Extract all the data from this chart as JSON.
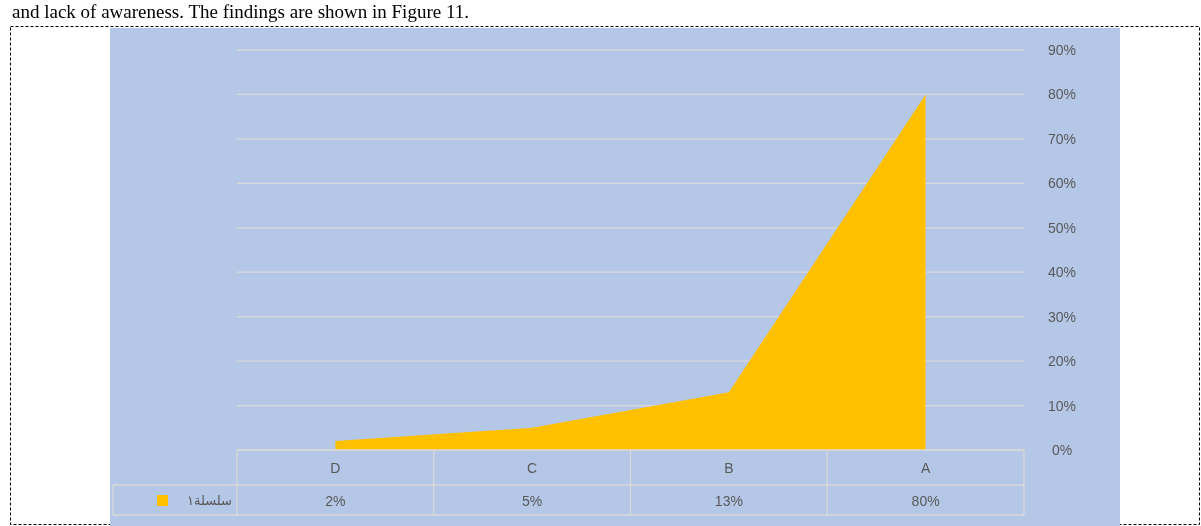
{
  "chart_data": {
    "type": "area",
    "categories": [
      "D",
      "C",
      "B",
      "A"
    ],
    "series": [
      {
        "name": "سلسلة١",
        "color": "#ffc000",
        "values": [
          2,
          5,
          13,
          80
        ]
      }
    ],
    "ylim": [
      0,
      90
    ],
    "yticks": [
      {
        "value": 0,
        "label": "0%"
      },
      {
        "value": 10,
        "label": "10%"
      },
      {
        "value": 20,
        "label": "20%"
      },
      {
        "value": 30,
        "label": "30%"
      },
      {
        "value": 40,
        "label": "40%"
      },
      {
        "value": 50,
        "label": "50%"
      },
      {
        "value": 60,
        "label": "60%"
      },
      {
        "value": 70,
        "label": "70%"
      },
      {
        "value": 80,
        "label": "80%"
      },
      {
        "value": 90,
        "label": "90%"
      }
    ],
    "value_labels": [
      "2%",
      "5%",
      "13%",
      "80%"
    ],
    "grid": "y",
    "legend": "bottom",
    "annotations": [
      "and lack of awareness. The findings are shown in Figure 11."
    ]
  }
}
